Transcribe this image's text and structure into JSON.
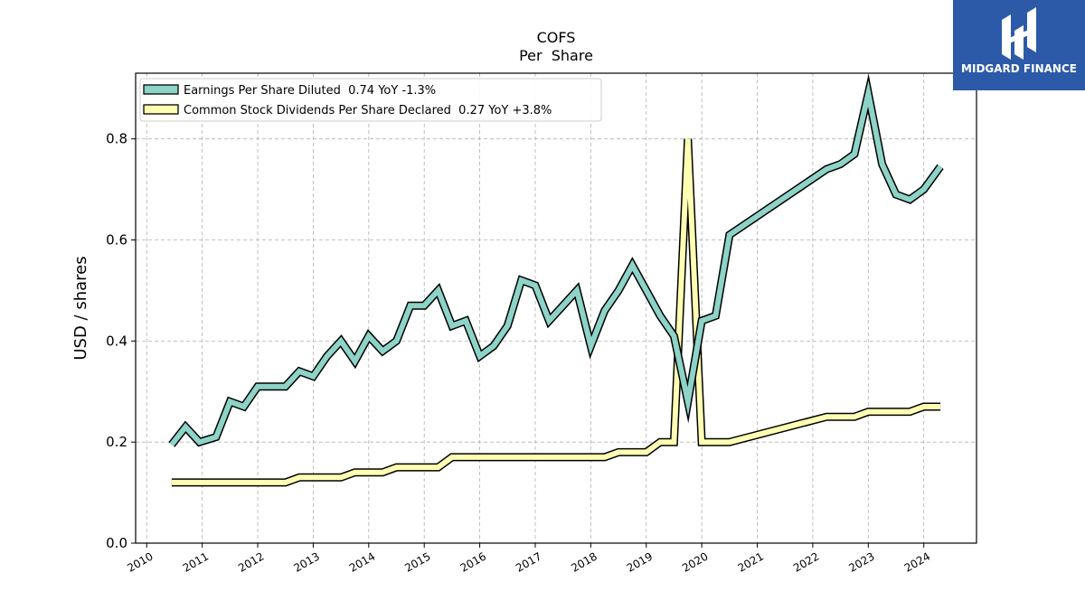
{
  "chart_data": {
    "type": "line",
    "title": "COFS",
    "subtitle": "Per  Share",
    "ylabel": "USD / shares",
    "xlabel": "",
    "xlim": [
      2009.8,
      2024.95
    ],
    "ylim": [
      0.0,
      0.93
    ],
    "yticks": [
      0.0,
      0.2,
      0.4,
      0.6,
      0.8
    ],
    "ytick_labels": [
      "0.0",
      "0.2",
      "0.4",
      "0.6",
      "0.8"
    ],
    "xticks": [
      2010,
      2011,
      2012,
      2013,
      2014,
      2015,
      2016,
      2017,
      2018,
      2019,
      2020,
      2021,
      2022,
      2023,
      2024
    ],
    "xtick_labels": [
      "2010",
      "2011",
      "2012",
      "2013",
      "2014",
      "2015",
      "2016",
      "2017",
      "2018",
      "2019",
      "2020",
      "2021",
      "2022",
      "2023",
      "2024"
    ],
    "grid": true,
    "legend_position": "top-left",
    "series": [
      {
        "name": "Earnings Per Share Diluted  0.74 YoY -1.3%",
        "color": "#8dd3c7",
        "x": [
          2010.45,
          2010.7,
          2010.95,
          2011.25,
          2011.5,
          2011.75,
          2012.0,
          2012.25,
          2012.5,
          2012.75,
          2013.0,
          2013.25,
          2013.5,
          2013.75,
          2014.0,
          2014.25,
          2014.5,
          2014.75,
          2015.0,
          2015.25,
          2015.5,
          2015.75,
          2016.0,
          2016.25,
          2016.5,
          2016.75,
          2017.0,
          2017.25,
          2017.5,
          2017.75,
          2018.0,
          2018.25,
          2018.5,
          2018.75,
          2019.0,
          2019.25,
          2019.5,
          2019.75,
          2020.0,
          2020.25,
          2020.5,
          2022.25,
          2022.5,
          2022.75,
          2023.0,
          2023.25,
          2023.5,
          2023.75,
          2024.0,
          2024.3
        ],
        "values": [
          0.195,
          0.23,
          0.2,
          0.21,
          0.28,
          0.27,
          0.31,
          0.31,
          0.31,
          0.34,
          0.33,
          0.37,
          0.4,
          0.36,
          0.41,
          0.38,
          0.4,
          0.47,
          0.47,
          0.5,
          0.43,
          0.44,
          0.37,
          0.39,
          0.43,
          0.52,
          0.51,
          0.44,
          0.47,
          0.5,
          0.39,
          0.46,
          0.5,
          0.55,
          0.5,
          0.45,
          0.41,
          0.28,
          0.44,
          0.45,
          0.61,
          0.74,
          0.75,
          0.77,
          0.89,
          0.75,
          0.69,
          0.68,
          0.7,
          0.745
        ]
      },
      {
        "name": "Common Stock Dividends Per Share Declared  0.27 YoY +3.8%",
        "color": "#ffffb3",
        "x": [
          2010.45,
          2012.5,
          2012.75,
          2013.5,
          2013.75,
          2014.25,
          2014.5,
          2015.25,
          2015.5,
          2018.25,
          2018.5,
          2019.0,
          2019.25,
          2019.5,
          2019.75,
          2020.0,
          2020.5,
          2022.25,
          2022.5,
          2022.75,
          2023.0,
          2023.75,
          2024.0,
          2024.3
        ],
        "values": [
          0.12,
          0.12,
          0.13,
          0.13,
          0.14,
          0.14,
          0.15,
          0.15,
          0.17,
          0.17,
          0.18,
          0.18,
          0.2,
          0.2,
          0.8,
          0.2,
          0.2,
          0.25,
          0.25,
          0.25,
          0.26,
          0.26,
          0.27,
          0.27
        ]
      }
    ]
  },
  "logo": {
    "text": "MIDGARD FINANCE"
  }
}
